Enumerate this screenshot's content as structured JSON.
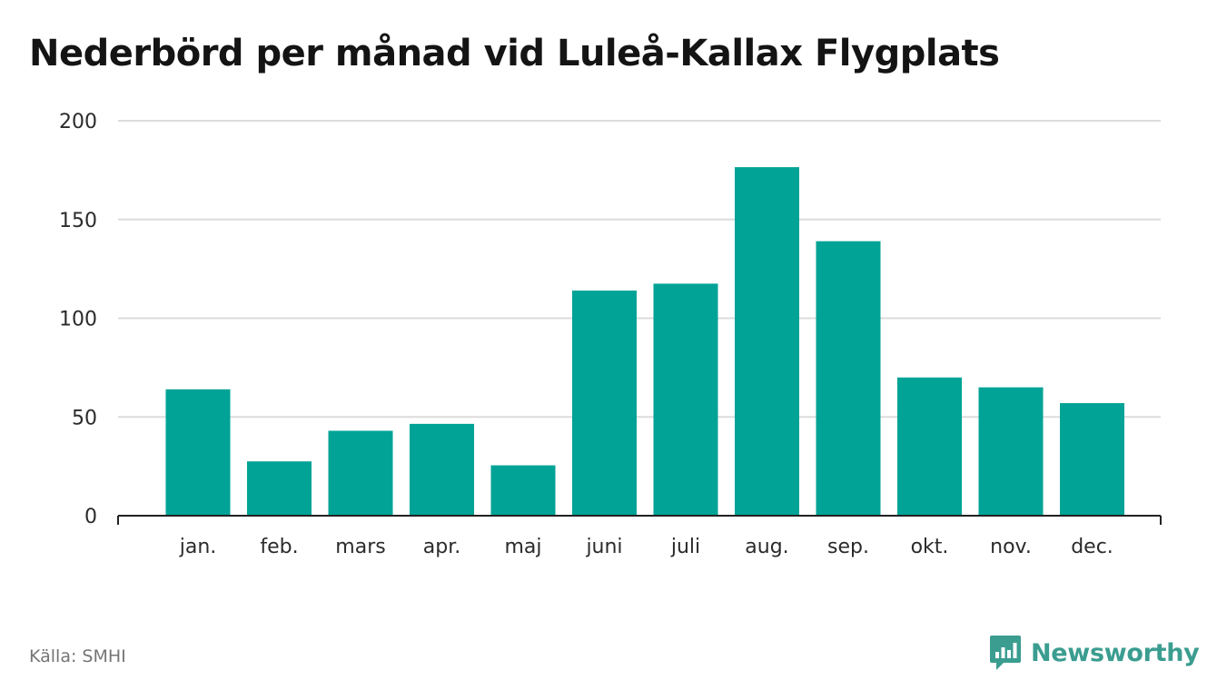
{
  "title": "Nederbörd per månad vid Luleå-Kallax Flygplats",
  "source": "Källa: SMHI",
  "brand": {
    "name": "Newsworthy",
    "icon": "newsworthy-logo-icon"
  },
  "colors": {
    "bar": "#00a396",
    "grid": "#dcdcdc",
    "axis": "#222222",
    "brand": "#3a9d90"
  },
  "chart_data": {
    "type": "bar",
    "title": "Nederbörd per månad vid Luleå-Kallax Flygplats",
    "xlabel": "",
    "ylabel": "",
    "ylim": [
      0,
      200
    ],
    "yticks": [
      0,
      50,
      100,
      150,
      200
    ],
    "grid": true,
    "categories": [
      "jan.",
      "feb.",
      "mars",
      "apr.",
      "maj",
      "juni",
      "juli",
      "aug.",
      "sep.",
      "okt.",
      "nov.",
      "dec."
    ],
    "values": [
      64,
      27.5,
      43,
      46.5,
      25.5,
      114,
      117.5,
      176.5,
      139,
      70,
      65,
      57
    ]
  }
}
